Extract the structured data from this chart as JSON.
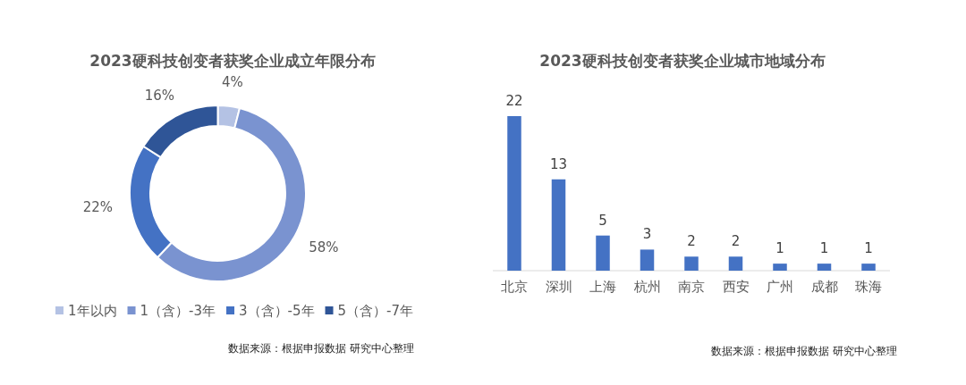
{
  "chart_data": [
    {
      "type": "donut",
      "title": "2023硬科技创变者获奖企业成立年限分布",
      "categories": [
        "1年以内",
        "1（含）-3年",
        "3（含）-5年",
        "5（含）-7年"
      ],
      "values": [
        4,
        58,
        22,
        16
      ],
      "colors": [
        "#b4c2e4",
        "#7a93d0",
        "#4472c4",
        "#2f5597"
      ],
      "value_labels": [
        "4%",
        "58%",
        "22%",
        "16%"
      ],
      "legend": "bottom",
      "annotations": [
        "数据来源：根据申报数据 研究中心整理"
      ]
    },
    {
      "type": "bar",
      "title": "2023硬科技创变者获奖企业城市地域分布",
      "categories": [
        "北京",
        "深圳",
        "上海",
        "杭州",
        "南京",
        "西安",
        "广州",
        "成都",
        "珠海"
      ],
      "values": [
        22,
        13,
        5,
        3,
        2,
        2,
        1,
        1,
        1
      ],
      "color": "#4472c4",
      "data_labels": true,
      "annotations": [
        "数据来源：根据申报数据 研究中心整理"
      ]
    }
  ]
}
